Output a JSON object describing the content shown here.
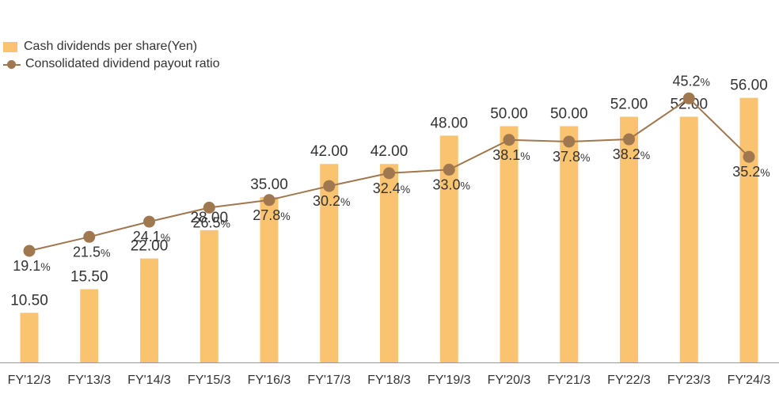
{
  "chart_data": {
    "type": "bar",
    "categories": [
      "FY'12/3",
      "FY'13/3",
      "FY'14/3",
      "FY'15/3",
      "FY'16/3",
      "FY'17/3",
      "FY'18/3",
      "FY'19/3",
      "FY'20/3",
      "FY'21/3",
      "FY'22/3",
      "FY'23/3",
      "FY'24/3"
    ],
    "series": [
      {
        "name": "Cash dividends per share(Yen)",
        "type": "bar",
        "color": "#f9c36f",
        "values": [
          10.5,
          15.5,
          22.0,
          28.0,
          35.0,
          42.0,
          42.0,
          48.0,
          50.0,
          50.0,
          52.0,
          52.0,
          56.0
        ],
        "labels": [
          "10.50",
          "15.50",
          "22.00",
          "28.00",
          "35.00",
          "42.00",
          "42.00",
          "48.00",
          "50.00",
          "50.00",
          "52.00",
          "52.00",
          "56.00"
        ]
      },
      {
        "name": "Consolidated dividend payout ratio",
        "type": "line",
        "color": "#a07850",
        "values": [
          19.1,
          21.5,
          24.1,
          26.5,
          27.8,
          30.2,
          32.4,
          33.0,
          38.1,
          37.8,
          38.2,
          45.2,
          35.2
        ],
        "labels": [
          "19.1",
          "21.5",
          "24.1",
          "26.5",
          "27.8",
          "30.2",
          "32.4",
          "33.0",
          "38.1",
          "37.8",
          "38.2",
          "45.2",
          "35.2"
        ],
        "unit": "%"
      }
    ],
    "title": "",
    "xlabel": "",
    "ylabel": "",
    "bar_ylim": [
      0,
      68
    ],
    "line_ylim": [
      0,
      55
    ],
    "grid": false,
    "legend_position": "top-left"
  }
}
